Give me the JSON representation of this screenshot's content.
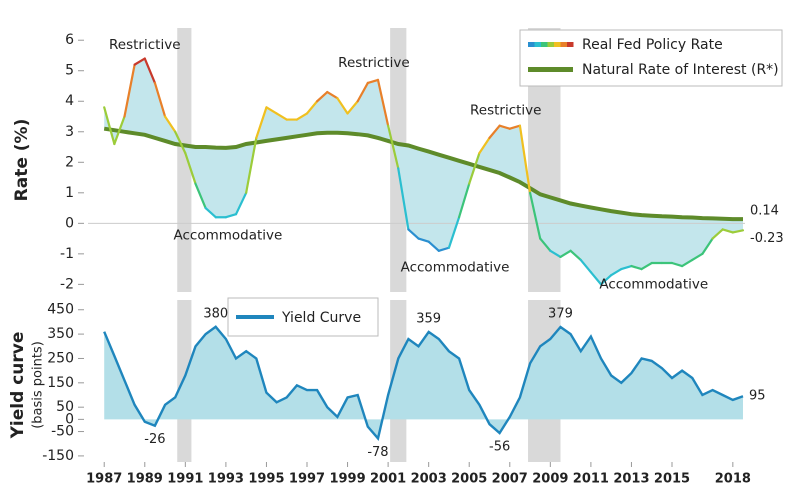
{
  "chart_data": [
    {
      "type": "line",
      "y_label": "Rate (%)",
      "x": [
        1987,
        1987.5,
        1988,
        1988.5,
        1989,
        1989.5,
        1990,
        1990.5,
        1991,
        1991.5,
        1992,
        1992.5,
        1993,
        1993.5,
        1994,
        1994.5,
        1995,
        1995.5,
        1996,
        1996.5,
        1997,
        1997.5,
        1998,
        1998.5,
        1999,
        1999.5,
        2000,
        2000.5,
        2001,
        2001.5,
        2002,
        2002.5,
        2003,
        2003.5,
        2004,
        2004.5,
        2005,
        2005.5,
        2006,
        2006.5,
        2007,
        2007.5,
        2008,
        2008.5,
        2009,
        2009.5,
        2010,
        2010.5,
        2011,
        2011.5,
        2012,
        2012.5,
        2013,
        2013.5,
        2014,
        2014.5,
        2015,
        2015.5,
        2016,
        2016.5,
        2017,
        2017.5,
        2018,
        2018.5
      ],
      "series": [
        {
          "name": "Real Fed Policy Rate",
          "color_scale": [
            "#2a8fd0",
            "#2bbfd0",
            "#3cc47a",
            "#9ccc3a",
            "#f0c020",
            "#e8802a",
            "#c8392b"
          ],
          "values": [
            3.8,
            2.6,
            3.5,
            5.2,
            5.4,
            4.6,
            3.5,
            3.0,
            2.3,
            1.3,
            0.5,
            0.2,
            0.2,
            0.3,
            1.0,
            2.8,
            3.8,
            3.6,
            3.4,
            3.4,
            3.6,
            4.0,
            4.3,
            4.1,
            3.6,
            4.0,
            4.6,
            4.7,
            3.2,
            1.8,
            -0.2,
            -0.5,
            -0.6,
            -0.9,
            -0.8,
            0.2,
            1.3,
            2.3,
            2.8,
            3.2,
            3.1,
            3.2,
            1.0,
            -0.5,
            -0.9,
            -1.1,
            -0.9,
            -1.2,
            -1.6,
            -2.0,
            -1.7,
            -1.5,
            -1.4,
            -1.5,
            -1.3,
            -1.3,
            -1.3,
            -1.4,
            -1.2,
            -1.0,
            -0.5,
            -0.2,
            -0.3,
            -0.23
          ]
        },
        {
          "name": "Natural Rate of Interest (R*)",
          "color": "#5e8b2a",
          "values": [
            3.1,
            3.05,
            3.0,
            2.95,
            2.9,
            2.8,
            2.7,
            2.6,
            2.55,
            2.5,
            2.5,
            2.48,
            2.47,
            2.5,
            2.6,
            2.65,
            2.7,
            2.75,
            2.8,
            2.85,
            2.9,
            2.95,
            2.97,
            2.97,
            2.95,
            2.92,
            2.88,
            2.8,
            2.7,
            2.6,
            2.55,
            2.45,
            2.35,
            2.25,
            2.15,
            2.05,
            1.95,
            1.85,
            1.75,
            1.65,
            1.5,
            1.35,
            1.15,
            0.95,
            0.85,
            0.75,
            0.65,
            0.58,
            0.52,
            0.46,
            0.4,
            0.35,
            0.3,
            0.27,
            0.25,
            0.23,
            0.22,
            0.2,
            0.19,
            0.17,
            0.16,
            0.15,
            0.14,
            0.14
          ]
        }
      ],
      "fill_color": "#c3e6ec",
      "annotations": [
        "Restrictive",
        "Restrictive",
        "Restrictive",
        "Accommodative",
        "Accommodative",
        "Accommodative"
      ],
      "xlim": [
        1986.2,
        2018.6
      ],
      "ylim": [
        -2.25,
        6.4
      ],
      "yticks": [
        -2,
        -1,
        0,
        1,
        2,
        3,
        4,
        5,
        6
      ],
      "shaded_periods": [
        [
          1990.6,
          1991.3
        ],
        [
          2001.1,
          2001.9
        ],
        [
          2007.9,
          2009.5
        ]
      ],
      "shade_color": "#d9d9d9"
    },
    {
      "type": "area",
      "y_label": "Yield curve",
      "y_sublabel": "(basis points)",
      "x": [
        1987,
        1987.5,
        1988,
        1988.5,
        1989,
        1989.5,
        1990,
        1990.5,
        1991,
        1991.5,
        1992,
        1992.5,
        1993,
        1993.5,
        1994,
        1994.5,
        1995,
        1995.5,
        1996,
        1996.5,
        1997,
        1997.5,
        1998,
        1998.5,
        1999,
        1999.5,
        2000,
        2000.5,
        2001,
        2001.5,
        2002,
        2002.5,
        2003,
        2003.5,
        2004,
        2004.5,
        2005,
        2005.5,
        2006,
        2006.5,
        2007,
        2007.5,
        2008,
        2008.5,
        2009,
        2009.5,
        2010,
        2010.5,
        2011,
        2011.5,
        2012,
        2012.5,
        2013,
        2013.5,
        2014,
        2014.5,
        2015,
        2015.5,
        2016,
        2016.5,
        2017,
        2017.5,
        2018,
        2018.5
      ],
      "series": [
        {
          "name": "Yield Curve",
          "color": "#1f86bd",
          "fill": "#b3dfe8",
          "values": [
            360,
            260,
            160,
            60,
            -10,
            -26,
            60,
            90,
            180,
            300,
            350,
            380,
            330,
            250,
            280,
            250,
            110,
            70,
            90,
            140,
            120,
            120,
            50,
            10,
            90,
            100,
            -30,
            -78,
            100,
            250,
            330,
            300,
            359,
            330,
            280,
            250,
            120,
            60,
            -20,
            -56,
            10,
            90,
            230,
            300,
            330,
            379,
            350,
            280,
            340,
            250,
            180,
            150,
            190,
            250,
            240,
            210,
            170,
            200,
            170,
            100,
            120,
            100,
            80,
            95
          ]
        }
      ],
      "xlim": [
        1986.2,
        2018.6
      ],
      "ylim": [
        -175,
        490
      ],
      "yticks": [
        -150,
        -50,
        0,
        50,
        150,
        250,
        350,
        450
      ],
      "xticks": [
        1987,
        1989,
        1991,
        1993,
        1995,
        1997,
        1999,
        2001,
        2003,
        2005,
        2007,
        2009,
        2011,
        2013,
        2015,
        2018
      ],
      "shaded_periods": [
        [
          1990.6,
          1991.3
        ],
        [
          2001.1,
          2001.9
        ],
        [
          2007.9,
          2009.5
        ]
      ],
      "shade_color": "#d9d9d9"
    }
  ]
}
